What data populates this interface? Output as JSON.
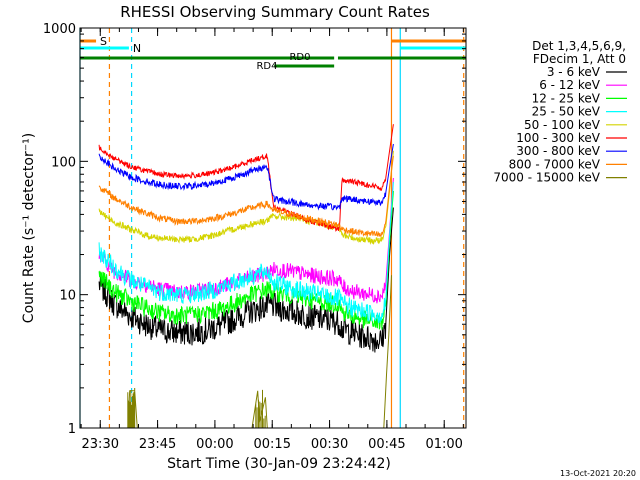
{
  "chart_data": {
    "type": "line",
    "title": "RHESSI Observing Summary Count Rates",
    "xlabel": "Start Time (30-Jan-09 23:24:42)",
    "ylabel": "Count Rate (s⁻¹ detector⁻¹)",
    "yscale": "log",
    "ylim": [
      1,
      1000
    ],
    "xlim_minutes": [
      0,
      101
    ],
    "x_ticks": [
      {
        "label": "23:30",
        "min": 5.3
      },
      {
        "label": "23:45",
        "min": 20.3
      },
      {
        "label": "00:00",
        "min": 35.3
      },
      {
        "label": "00:15",
        "min": 50.3
      },
      {
        "label": "00:30",
        "min": 65.3
      },
      {
        "label": "00:45",
        "min": 80.3
      },
      {
        "label": "01:00",
        "min": 95.3
      }
    ],
    "y_ticks": [
      {
        "label": "1",
        "value": 1
      },
      {
        "label": "10",
        "value": 10
      },
      {
        "label": "100",
        "value": 100
      },
      {
        "label": "1000",
        "value": 1000
      }
    ],
    "legend_header": [
      "Det 1,3,4,5,6,9,",
      "FDecim 1, Att 0"
    ],
    "series": [
      {
        "name": "3 - 6 keV",
        "color": "#000000",
        "x": [
          5,
          9,
          13,
          17,
          21,
          25,
          29,
          33,
          37,
          41,
          45,
          49,
          50.6,
          52,
          56,
          60,
          64,
          67.9,
          68.5,
          72,
          76,
          79,
          80,
          81,
          82
        ],
        "y": [
          12,
          8.5,
          7,
          6,
          5.4,
          5.2,
          5.2,
          5.4,
          5.9,
          6.7,
          7.6,
          8.2,
          8.3,
          7.9,
          7.4,
          6.9,
          6.5,
          6.2,
          5.6,
          5.1,
          4.7,
          4.5,
          6,
          20,
          45
        ]
      },
      {
        "name": "6 - 12 keV",
        "color": "#ff00ff",
        "x": [
          5,
          9,
          13,
          17,
          21,
          25,
          29,
          33,
          37,
          41,
          45,
          49,
          50.6,
          52,
          56,
          60,
          64,
          67.9,
          68.5,
          72,
          76,
          79,
          80,
          81,
          82
        ],
        "y": [
          20,
          15,
          13,
          12,
          11,
          10.5,
          10.5,
          11,
          11.5,
          12.5,
          13.5,
          14.5,
          15.5,
          15.5,
          14.8,
          14,
          13.5,
          13,
          11.5,
          10.5,
          10,
          9.8,
          12,
          30,
          75
        ]
      },
      {
        "name": "12 - 25 keV",
        "color": "#00ff00",
        "x": [
          5,
          9,
          13,
          17,
          21,
          25,
          29,
          33,
          37,
          41,
          45,
          49,
          50.6,
          52,
          56,
          60,
          64,
          67.9,
          68.5,
          72,
          76,
          79,
          80,
          81,
          82
        ],
        "y": [
          14,
          10.5,
          9,
          8,
          7.3,
          7,
          7,
          7.3,
          7.8,
          8.8,
          10,
          11,
          10.5,
          10.3,
          9.8,
          9.2,
          8.8,
          8.5,
          7.5,
          6.8,
          6.3,
          6.1,
          8,
          25,
          60
        ]
      },
      {
        "name": "25 - 50 keV",
        "color": "#00ffff",
        "x": [
          5,
          9,
          13,
          17,
          21,
          25,
          29,
          33,
          37,
          41,
          45,
          49,
          50.6,
          52,
          56,
          60,
          64,
          67.9,
          68.5,
          72,
          76,
          79,
          80,
          81,
          82
        ],
        "y": [
          21,
          16,
          13,
          11.5,
          10.5,
          10,
          10,
          10.5,
          11.3,
          12.5,
          13.8,
          15,
          12.5,
          12,
          11,
          10.3,
          9.8,
          9.3,
          8.6,
          7.8,
          7.3,
          7,
          9,
          28,
          70
        ]
      },
      {
        "name": "50 - 100 keV",
        "color": "#d4d400",
        "x": [
          5,
          9,
          13,
          17,
          21,
          25,
          29,
          33,
          37,
          41,
          45,
          49,
          50.6,
          52,
          56,
          60,
          64,
          67.9,
          68.5,
          72,
          76,
          79,
          80,
          81,
          82
        ],
        "y": [
          42,
          35,
          31,
          28,
          26.5,
          26,
          26,
          27,
          29,
          31.5,
          34,
          36,
          39,
          38.5,
          37.5,
          35.5,
          33.5,
          31.5,
          28,
          26.5,
          25.5,
          25.5,
          32,
          60,
          120
        ]
      },
      {
        "name": "100 - 300 keV",
        "color": "#ff0000",
        "x": [
          5,
          9,
          13,
          17,
          21,
          25,
          29,
          33,
          37,
          41,
          45,
          49,
          50.6,
          52,
          56,
          60,
          64,
          67.9,
          68.5,
          72,
          76,
          79,
          80,
          81,
          82
        ],
        "y": [
          128,
          105,
          92,
          85,
          80,
          78,
          78,
          80,
          85,
          92,
          102,
          110,
          46,
          44,
          40,
          36,
          33,
          31,
          72,
          70,
          66,
          63,
          75,
          120,
          190
        ]
      },
      {
        "name": "300 - 800 keV",
        "color": "#0000ff",
        "x": [
          5,
          9,
          13,
          17,
          21,
          25,
          29,
          33,
          37,
          41,
          45,
          49,
          50.6,
          52,
          56,
          60,
          64,
          67.9,
          68.5,
          72,
          76,
          79,
          80,
          81,
          82
        ],
        "y": [
          110,
          88,
          77,
          71,
          67,
          65,
          65,
          67,
          71,
          77,
          85,
          92,
          53,
          51,
          49,
          47,
          46,
          45,
          53,
          51.5,
          50,
          49,
          58,
          90,
          135
        ]
      },
      {
        "name": "800 - 7000 keV",
        "color": "#ff8000",
        "x": [
          5,
          9,
          13,
          17,
          21,
          25,
          29,
          33,
          37,
          41,
          45,
          49,
          50.6,
          52,
          56,
          60,
          64,
          67.9,
          68.5,
          72,
          76,
          79,
          80,
          81,
          82
        ],
        "y": [
          65,
          53,
          46,
          41,
          37.5,
          35.5,
          35.5,
          36.5,
          38.5,
          41.5,
          45,
          48,
          43,
          42,
          39.5,
          37,
          35,
          33,
          31,
          29.5,
          28.5,
          28,
          35,
          65,
          110
        ]
      },
      {
        "name": "7000 - 15000 keV",
        "color": "#808000",
        "x": [
          5,
          12.5,
          13,
          14.3,
          15,
          45,
          46.5,
          47,
          48.5,
          49,
          79.5,
          80.2,
          80.8,
          81.5
        ],
        "y": [
          1,
          1,
          1.9,
          1.9,
          1,
          1,
          1.9,
          1.1,
          1.7,
          1,
          1,
          2.5,
          5,
          14
        ]
      }
    ],
    "segments": {
      "orange_bars": [
        {
          "from": 0,
          "to": 4.2
        },
        {
          "from": 81.5,
          "to": 101
        }
      ],
      "cyan_bars": [
        {
          "from": 0,
          "to": 12.8
        },
        {
          "from": 83.8,
          "to": 101
        }
      ],
      "green_bars_upper": [
        {
          "from": 0,
          "to": 66.5
        },
        {
          "from": 67.5,
          "to": 101
        }
      ],
      "green_bar_lower": {
        "from": 50.8,
        "to": 66.5
      },
      "labels": {
        "s": "S",
        "n": "N",
        "rd0": "RD0",
        "rd4": "RD4"
      }
    },
    "vlines": [
      {
        "min": 0,
        "color": "#00d8ff",
        "dash": false
      },
      {
        "min": 7.7,
        "color": "#ff8000",
        "dash": true
      },
      {
        "min": 13.5,
        "color": "#00d8ff",
        "dash": true
      },
      {
        "min": 81.5,
        "color": "#ff8000",
        "dash": false
      },
      {
        "min": 83.8,
        "color": "#00d8ff",
        "dash": false
      },
      {
        "min": 100.4,
        "color": "#ff8000",
        "dash": true
      }
    ],
    "grid": false,
    "legend_position": "right"
  },
  "footer_date": "13-Oct-2021 20:20"
}
